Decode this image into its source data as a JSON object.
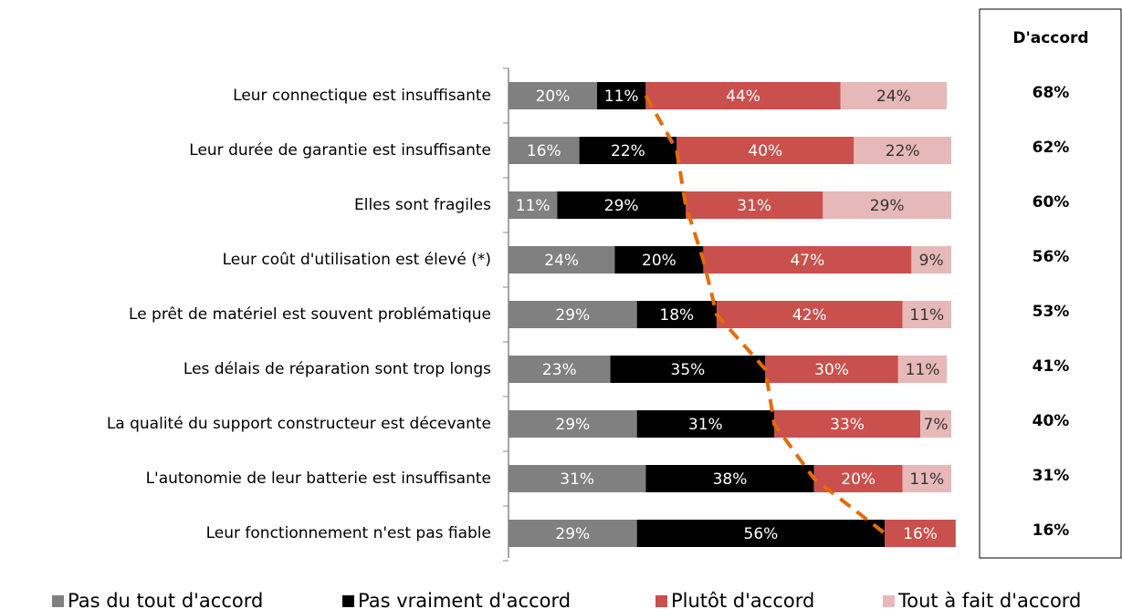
{
  "chart_data": {
    "type": "stacked_barh",
    "categories": [
      "Leur connectique est insuffisante",
      "Leur durée de garantie est insuffisante",
      "Elles sont fragiles",
      "Leur coût d'utilisation est élevé (*)",
      "Le prêt de matériel est souvent problématique",
      "Les délais de réparation sont trop longs",
      "La qualité du support constructeur est décevante",
      "L'autonomie de leur batterie est insuffisante",
      "Leur fonctionnement n'est pas fiable"
    ],
    "xlim": [
      0,
      100
    ],
    "series": [
      {
        "name": "Pas du tout d'accord",
        "color": "#808080",
        "label_color": "#ffffff",
        "values": [
          20,
          16,
          11,
          24,
          29,
          23,
          29,
          31,
          29
        ],
        "value_labels": [
          "20%",
          "16%",
          "11%",
          "24%",
          "29%",
          "23%",
          "29%",
          "31%",
          "29%"
        ]
      },
      {
        "name": "Pas vraiment d'accord",
        "color": "#000000",
        "label_color": "#ffffff",
        "values": [
          11,
          22,
          29,
          20,
          18,
          35,
          31,
          38,
          56
        ],
        "value_labels": [
          "11%",
          "22%",
          "29%",
          "20%",
          "18%",
          "35%",
          "31%",
          "38%",
          "56%"
        ]
      },
      {
        "name": "Plutôt d'accord",
        "color": "#c9504c",
        "label_color": "#ffffff",
        "values": [
          44,
          40,
          31,
          47,
          42,
          30,
          33,
          20,
          16
        ],
        "value_labels": [
          "44%",
          "40%",
          "31%",
          "47%",
          "42%",
          "30%",
          "33%",
          "20%",
          "16%"
        ]
      },
      {
        "name": "Tout à fait d'accord",
        "color": "#e6b9b8",
        "label_color": "#333333",
        "values": [
          24,
          22,
          29,
          9,
          11,
          11,
          7,
          11,
          null
        ],
        "value_labels": [
          "24%",
          "22%",
          "29%",
          "9%",
          "11%",
          "11%",
          "7%",
          "11%",
          null
        ]
      }
    ],
    "boundary_color": "#e36c0a",
    "agree_column": {
      "title": "D'accord",
      "values": [
        68,
        62,
        60,
        56,
        53,
        41,
        40,
        31,
        16
      ],
      "value_labels": [
        "68%",
        "62%",
        "60%",
        "56%",
        "53%",
        "41%",
        "40%",
        "31%",
        "16%"
      ]
    }
  }
}
